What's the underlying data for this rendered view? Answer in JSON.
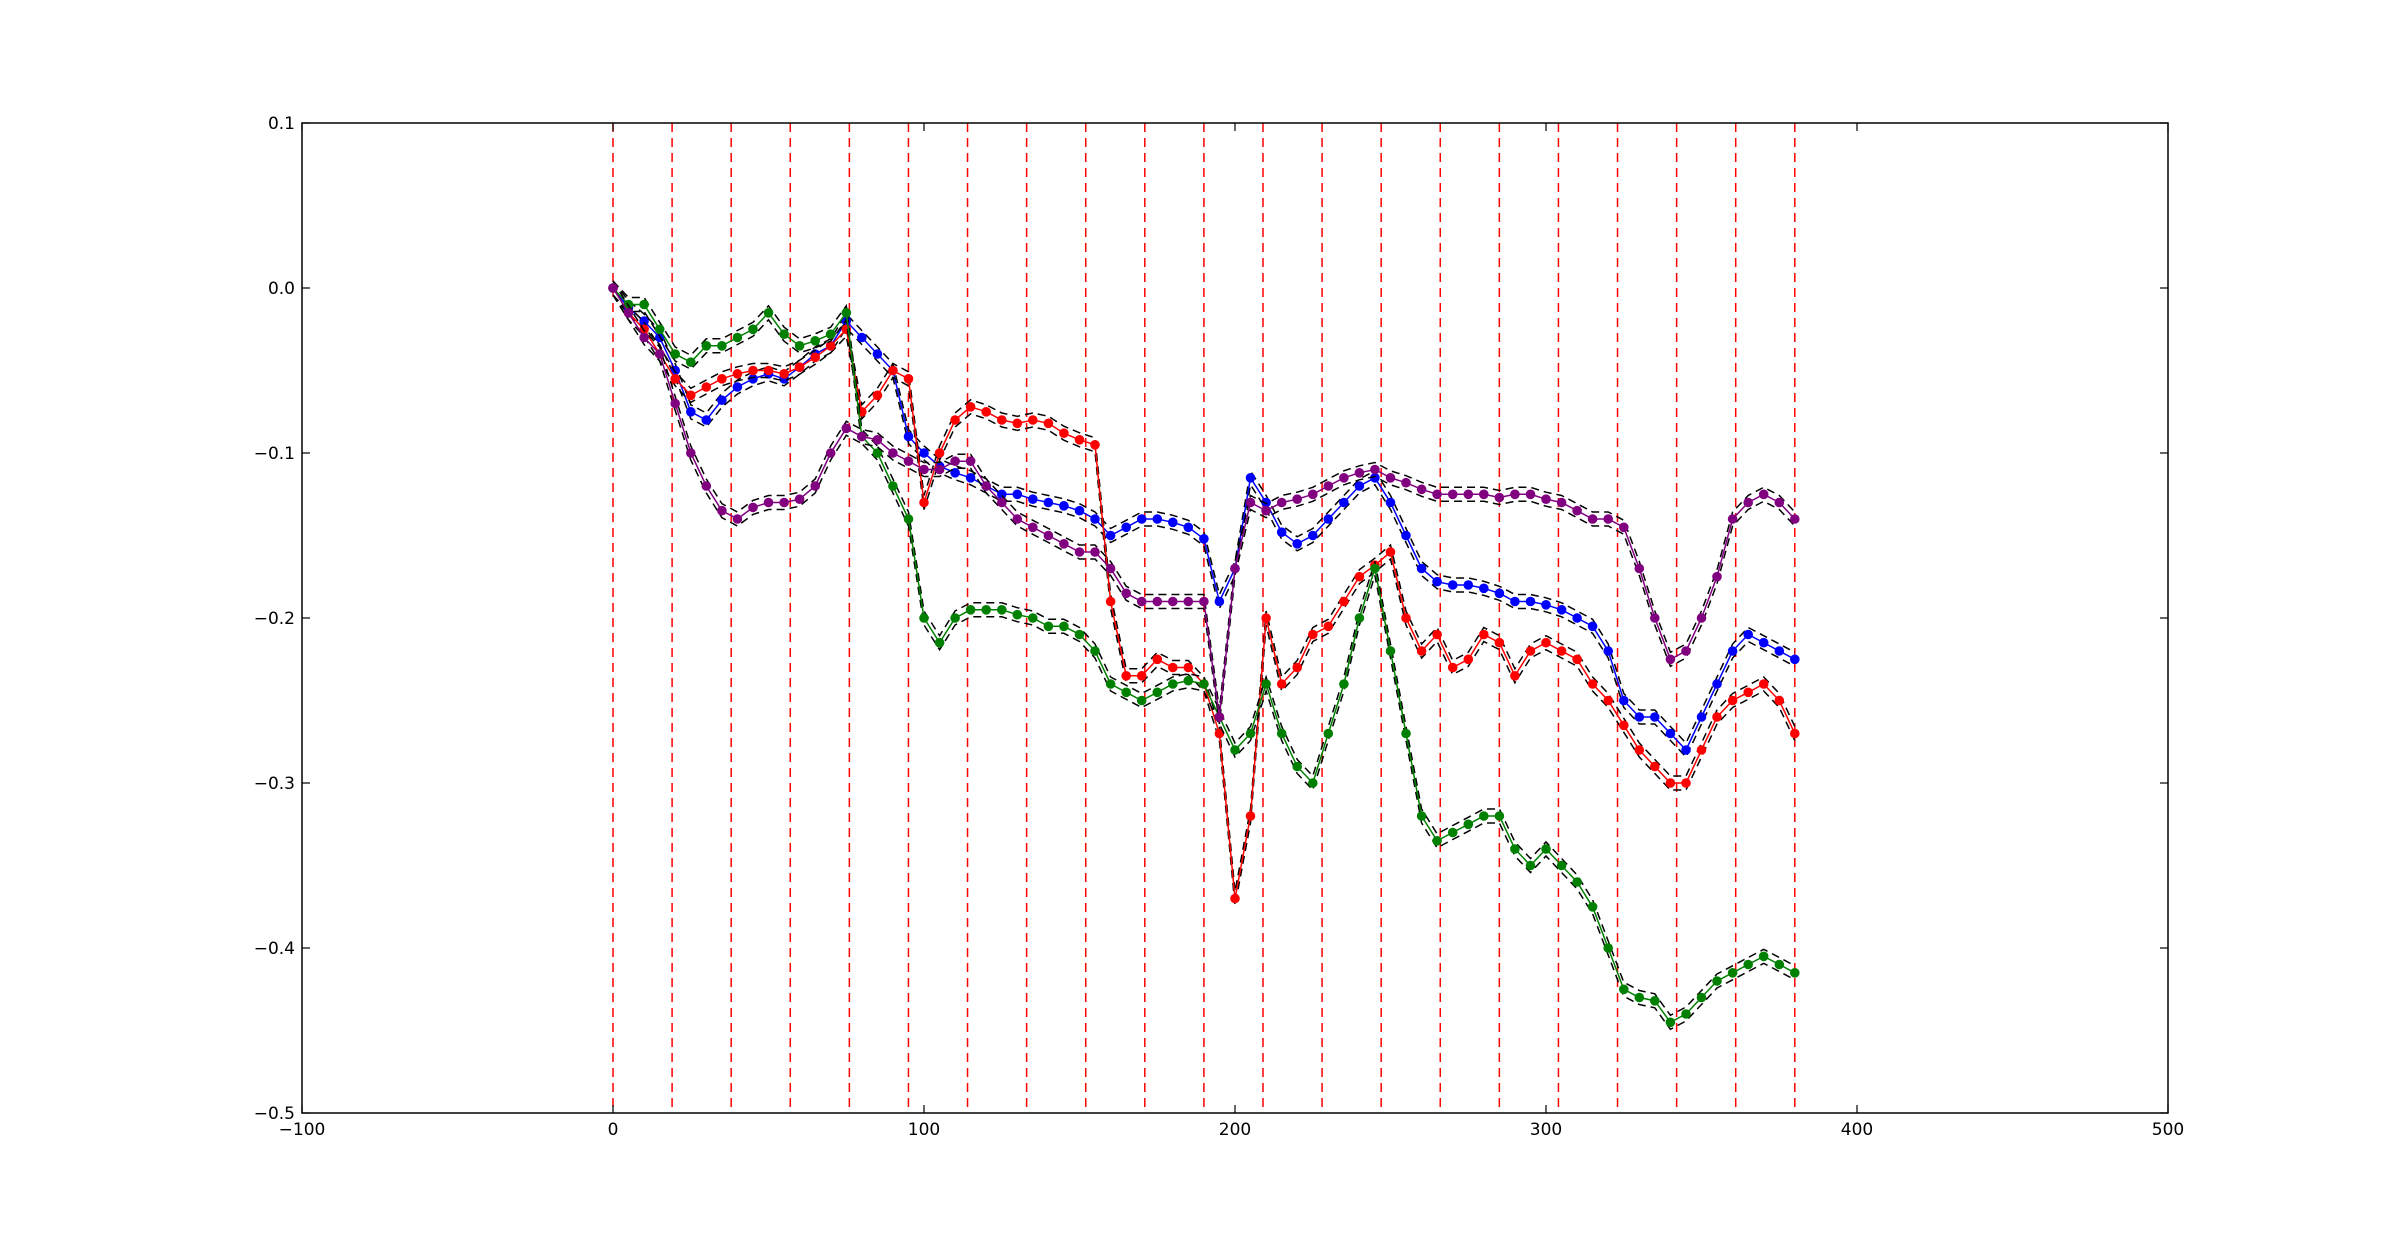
{
  "chart_data": {
    "type": "scatter",
    "xlim": [
      -100,
      500
    ],
    "ylim": [
      -0.5,
      0.1
    ],
    "x_ticks": [
      -100,
      0,
      100,
      200,
      300,
      400,
      500
    ],
    "x_tick_labels": [
      "−100",
      "0",
      "100",
      "200",
      "300",
      "400",
      "500"
    ],
    "y_ticks": [
      0.1,
      0.0,
      -0.1,
      -0.2,
      -0.3,
      -0.4,
      -0.5
    ],
    "y_tick_labels": [
      "0.1",
      "0.0",
      "−0.1",
      "−0.2",
      "−0.3",
      "−0.4",
      "−0.5"
    ],
    "grid": false,
    "vlines": {
      "color": "#ff0000",
      "style": "dashed",
      "x": [
        0,
        19,
        38,
        57,
        76,
        95,
        114,
        133,
        152,
        171,
        190,
        209,
        228,
        247,
        266,
        285,
        304,
        323,
        342,
        361,
        380
      ]
    },
    "series": [
      {
        "color": "#0000ff",
        "x": [
          0,
          5,
          10,
          15,
          20,
          25,
          30,
          35,
          40,
          45,
          50,
          55,
          60,
          65,
          70,
          75,
          80,
          85,
          90,
          95,
          100,
          105,
          110,
          115,
          120,
          125,
          130,
          135,
          140,
          145,
          150,
          155,
          160,
          165,
          170,
          175,
          180,
          185,
          190,
          195,
          200,
          205,
          210,
          215,
          220,
          225,
          230,
          235,
          240,
          245,
          250,
          255,
          260,
          265,
          270,
          275,
          280,
          285,
          290,
          295,
          300,
          305,
          310,
          315,
          320,
          325,
          330,
          335,
          340,
          345,
          350,
          355,
          360,
          365,
          370,
          375,
          380
        ],
        "y": [
          0.0,
          -0.012,
          -0.02,
          -0.03,
          -0.05,
          -0.075,
          -0.08,
          -0.068,
          -0.06,
          -0.055,
          -0.052,
          -0.055,
          -0.048,
          -0.04,
          -0.035,
          -0.02,
          -0.03,
          -0.04,
          -0.05,
          -0.09,
          -0.1,
          -0.108,
          -0.112,
          -0.115,
          -0.12,
          -0.125,
          -0.125,
          -0.128,
          -0.13,
          -0.132,
          -0.135,
          -0.14,
          -0.15,
          -0.145,
          -0.14,
          -0.14,
          -0.142,
          -0.145,
          -0.152,
          -0.19,
          -0.17,
          -0.115,
          -0.13,
          -0.148,
          -0.155,
          -0.15,
          -0.14,
          -0.13,
          -0.12,
          -0.115,
          -0.13,
          -0.15,
          -0.17,
          -0.178,
          -0.18,
          -0.18,
          -0.182,
          -0.185,
          -0.19,
          -0.19,
          -0.192,
          -0.195,
          -0.2,
          -0.205,
          -0.22,
          -0.25,
          -0.26,
          -0.26,
          -0.27,
          -0.28,
          -0.26,
          -0.24,
          -0.22,
          -0.21,
          -0.215,
          -0.22,
          -0.225
        ]
      },
      {
        "color": "#ff0000",
        "x": [
          0,
          5,
          10,
          15,
          20,
          25,
          30,
          35,
          40,
          45,
          50,
          55,
          60,
          65,
          70,
          75,
          80,
          85,
          90,
          95,
          100,
          105,
          110,
          115,
          120,
          125,
          130,
          135,
          140,
          145,
          150,
          155,
          160,
          165,
          170,
          175,
          180,
          185,
          190,
          195,
          200,
          205,
          210,
          215,
          220,
          225,
          230,
          235,
          240,
          245,
          250,
          255,
          260,
          265,
          270,
          275,
          280,
          285,
          290,
          295,
          300,
          305,
          310,
          315,
          320,
          325,
          330,
          335,
          340,
          345,
          350,
          355,
          360,
          365,
          370,
          375,
          380
        ],
        "y": [
          0.0,
          -0.015,
          -0.025,
          -0.04,
          -0.055,
          -0.065,
          -0.06,
          -0.055,
          -0.052,
          -0.05,
          -0.05,
          -0.052,
          -0.048,
          -0.042,
          -0.035,
          -0.025,
          -0.075,
          -0.065,
          -0.05,
          -0.055,
          -0.13,
          -0.1,
          -0.08,
          -0.072,
          -0.075,
          -0.08,
          -0.082,
          -0.08,
          -0.082,
          -0.088,
          -0.092,
          -0.095,
          -0.19,
          -0.235,
          -0.235,
          -0.225,
          -0.23,
          -0.23,
          -0.24,
          -0.27,
          -0.37,
          -0.32,
          -0.2,
          -0.24,
          -0.23,
          -0.21,
          -0.205,
          -0.19,
          -0.175,
          -0.168,
          -0.16,
          -0.2,
          -0.22,
          -0.21,
          -0.23,
          -0.225,
          -0.21,
          -0.215,
          -0.235,
          -0.22,
          -0.215,
          -0.22,
          -0.225,
          -0.24,
          -0.25,
          -0.265,
          -0.28,
          -0.29,
          -0.3,
          -0.3,
          -0.28,
          -0.26,
          -0.25,
          -0.245,
          -0.24,
          -0.25,
          -0.27
        ]
      },
      {
        "color": "#008000",
        "x": [
          0,
          5,
          10,
          15,
          20,
          25,
          30,
          35,
          40,
          45,
          50,
          55,
          60,
          65,
          70,
          75,
          80,
          85,
          90,
          95,
          100,
          105,
          110,
          115,
          120,
          125,
          130,
          135,
          140,
          145,
          150,
          155,
          160,
          165,
          170,
          175,
          180,
          185,
          190,
          195,
          200,
          205,
          210,
          215,
          220,
          225,
          230,
          235,
          240,
          245,
          250,
          255,
          260,
          265,
          270,
          275,
          280,
          285,
          290,
          295,
          300,
          305,
          310,
          315,
          320,
          325,
          330,
          335,
          340,
          345,
          350,
          355,
          360,
          365,
          370,
          375,
          380
        ],
        "y": [
          0.0,
          -0.01,
          -0.01,
          -0.025,
          -0.04,
          -0.045,
          -0.035,
          -0.035,
          -0.03,
          -0.025,
          -0.015,
          -0.028,
          -0.035,
          -0.032,
          -0.028,
          -0.015,
          -0.09,
          -0.1,
          -0.12,
          -0.14,
          -0.2,
          -0.215,
          -0.2,
          -0.195,
          -0.195,
          -0.195,
          -0.198,
          -0.2,
          -0.205,
          -0.205,
          -0.21,
          -0.22,
          -0.24,
          -0.245,
          -0.25,
          -0.245,
          -0.24,
          -0.238,
          -0.24,
          -0.26,
          -0.28,
          -0.27,
          -0.24,
          -0.27,
          -0.29,
          -0.3,
          -0.27,
          -0.24,
          -0.2,
          -0.17,
          -0.22,
          -0.27,
          -0.32,
          -0.335,
          -0.33,
          -0.325,
          -0.32,
          -0.32,
          -0.34,
          -0.35,
          -0.34,
          -0.35,
          -0.36,
          -0.375,
          -0.4,
          -0.425,
          -0.43,
          -0.432,
          -0.445,
          -0.44,
          -0.43,
          -0.42,
          -0.415,
          -0.41,
          -0.405,
          -0.41,
          -0.415
        ]
      },
      {
        "color": "#800080",
        "x": [
          0,
          5,
          10,
          15,
          20,
          25,
          30,
          35,
          40,
          45,
          50,
          55,
          60,
          65,
          70,
          75,
          80,
          85,
          90,
          95,
          100,
          105,
          110,
          115,
          120,
          125,
          130,
          135,
          140,
          145,
          150,
          155,
          160,
          165,
          170,
          175,
          180,
          185,
          190,
          195,
          200,
          205,
          210,
          215,
          220,
          225,
          230,
          235,
          240,
          245,
          250,
          255,
          260,
          265,
          270,
          275,
          280,
          285,
          290,
          295,
          300,
          305,
          310,
          315,
          320,
          325,
          330,
          335,
          340,
          345,
          350,
          355,
          360,
          365,
          370,
          375,
          380
        ],
        "y": [
          0.0,
          -0.015,
          -0.03,
          -0.04,
          -0.07,
          -0.1,
          -0.12,
          -0.135,
          -0.14,
          -0.133,
          -0.13,
          -0.13,
          -0.128,
          -0.12,
          -0.1,
          -0.085,
          -0.09,
          -0.092,
          -0.1,
          -0.105,
          -0.11,
          -0.11,
          -0.105,
          -0.105,
          -0.12,
          -0.13,
          -0.14,
          -0.145,
          -0.15,
          -0.155,
          -0.16,
          -0.16,
          -0.17,
          -0.185,
          -0.19,
          -0.19,
          -0.19,
          -0.19,
          -0.19,
          -0.26,
          -0.17,
          -0.13,
          -0.135,
          -0.13,
          -0.128,
          -0.125,
          -0.12,
          -0.115,
          -0.112,
          -0.11,
          -0.115,
          -0.118,
          -0.122,
          -0.125,
          -0.125,
          -0.125,
          -0.125,
          -0.127,
          -0.125,
          -0.125,
          -0.128,
          -0.13,
          -0.135,
          -0.14,
          -0.14,
          -0.145,
          -0.17,
          -0.2,
          -0.225,
          -0.22,
          -0.2,
          -0.175,
          -0.14,
          -0.13,
          -0.125,
          -0.13,
          -0.14
        ]
      }
    ]
  }
}
